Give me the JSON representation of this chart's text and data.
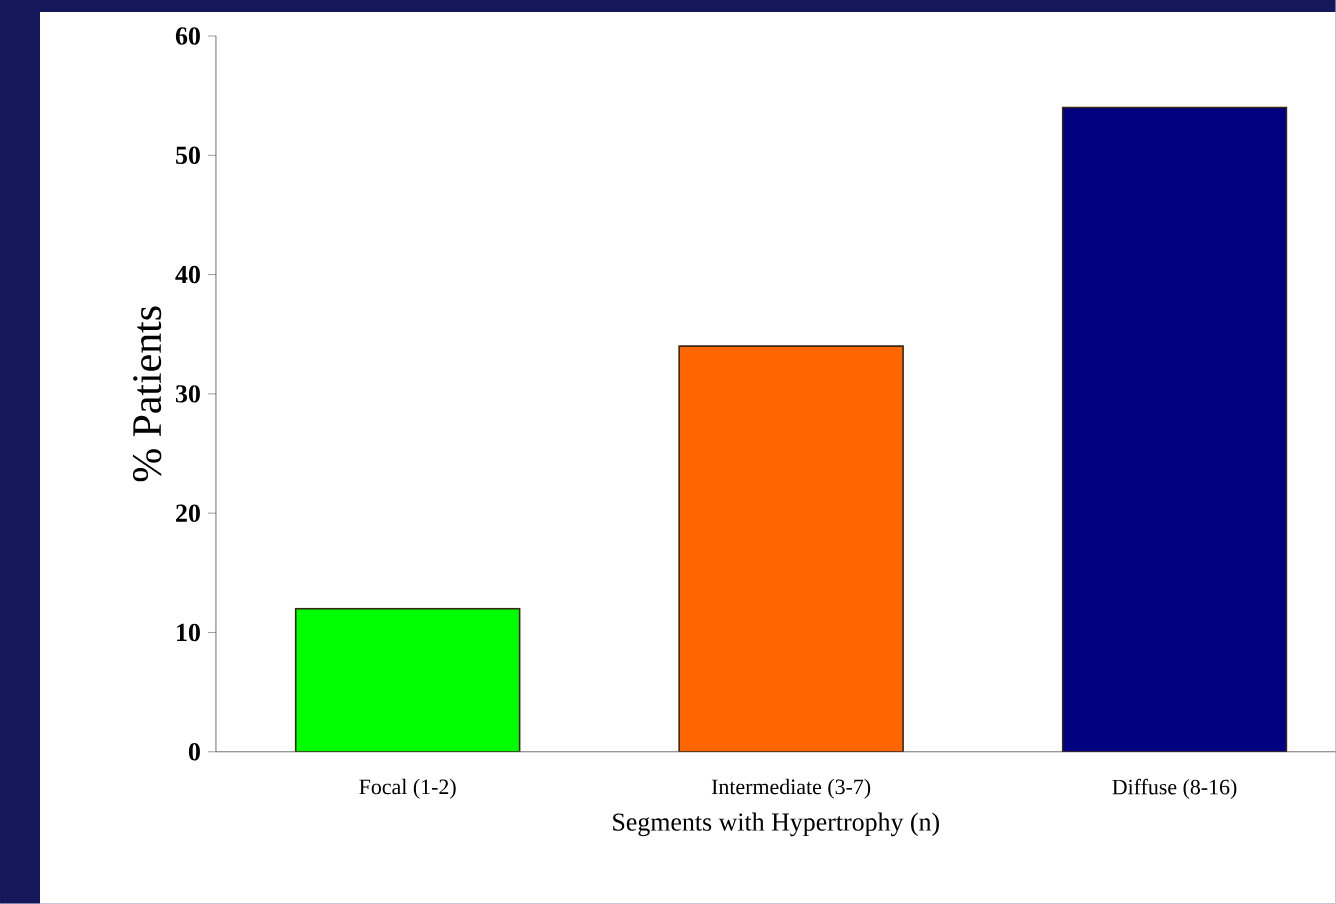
{
  "chart_data": {
    "type": "bar",
    "xlabel": "Segments with Hypertrophy (n)",
    "ylabel": "% Patients",
    "categories": [
      "Focal (1-2)",
      "Intermediate (3-7)",
      "Diffuse (8-16)"
    ],
    "values": [
      12,
      34,
      54
    ],
    "colors": [
      "#00ff00",
      "#ff6600",
      "#000080"
    ],
    "ylim": [
      0,
      60
    ],
    "yticks": [
      0,
      10,
      20,
      30,
      40,
      50,
      60
    ]
  }
}
